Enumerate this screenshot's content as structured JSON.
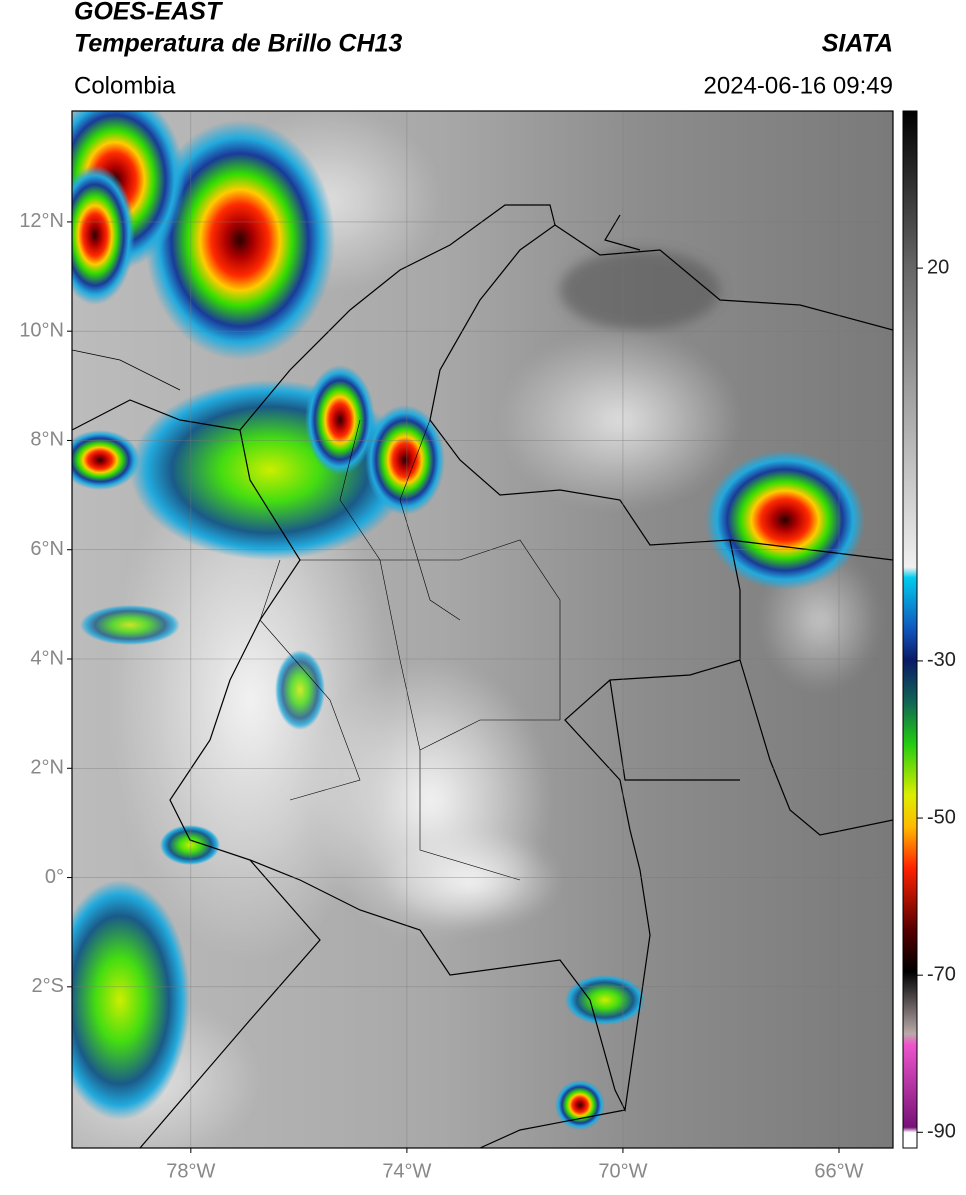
{
  "header": {
    "source": "GOES-EAST",
    "product": "Temperatura de Brillo CH13",
    "agency": "SIATA",
    "region": "Colombia",
    "datetime": "2024-06-16 09:49"
  },
  "map": {
    "lon_range": [
      -80.2,
      -65.0
    ],
    "lat_range": [
      -4.95,
      14.03
    ],
    "grid": true,
    "lat_ticks": [
      {
        "value": 12,
        "label": "12°N"
      },
      {
        "value": 10,
        "label": "10°N"
      },
      {
        "value": 8,
        "label": "8°N"
      },
      {
        "value": 6,
        "label": "6°N"
      },
      {
        "value": 4,
        "label": "4°N"
      },
      {
        "value": 2,
        "label": "2°N"
      },
      {
        "value": 0,
        "label": "0°"
      },
      {
        "value": -2,
        "label": "2°S"
      }
    ],
    "lon_ticks": [
      {
        "value": -78,
        "label": "78°W"
      },
      {
        "value": -74,
        "label": "74°W"
      },
      {
        "value": -70,
        "label": "70°W"
      },
      {
        "value": -66,
        "label": "66°W"
      }
    ]
  },
  "colorbar": {
    "lim": [
      -92,
      40
    ],
    "ticks": [
      20,
      -30,
      -50,
      -70,
      -90
    ]
  }
}
